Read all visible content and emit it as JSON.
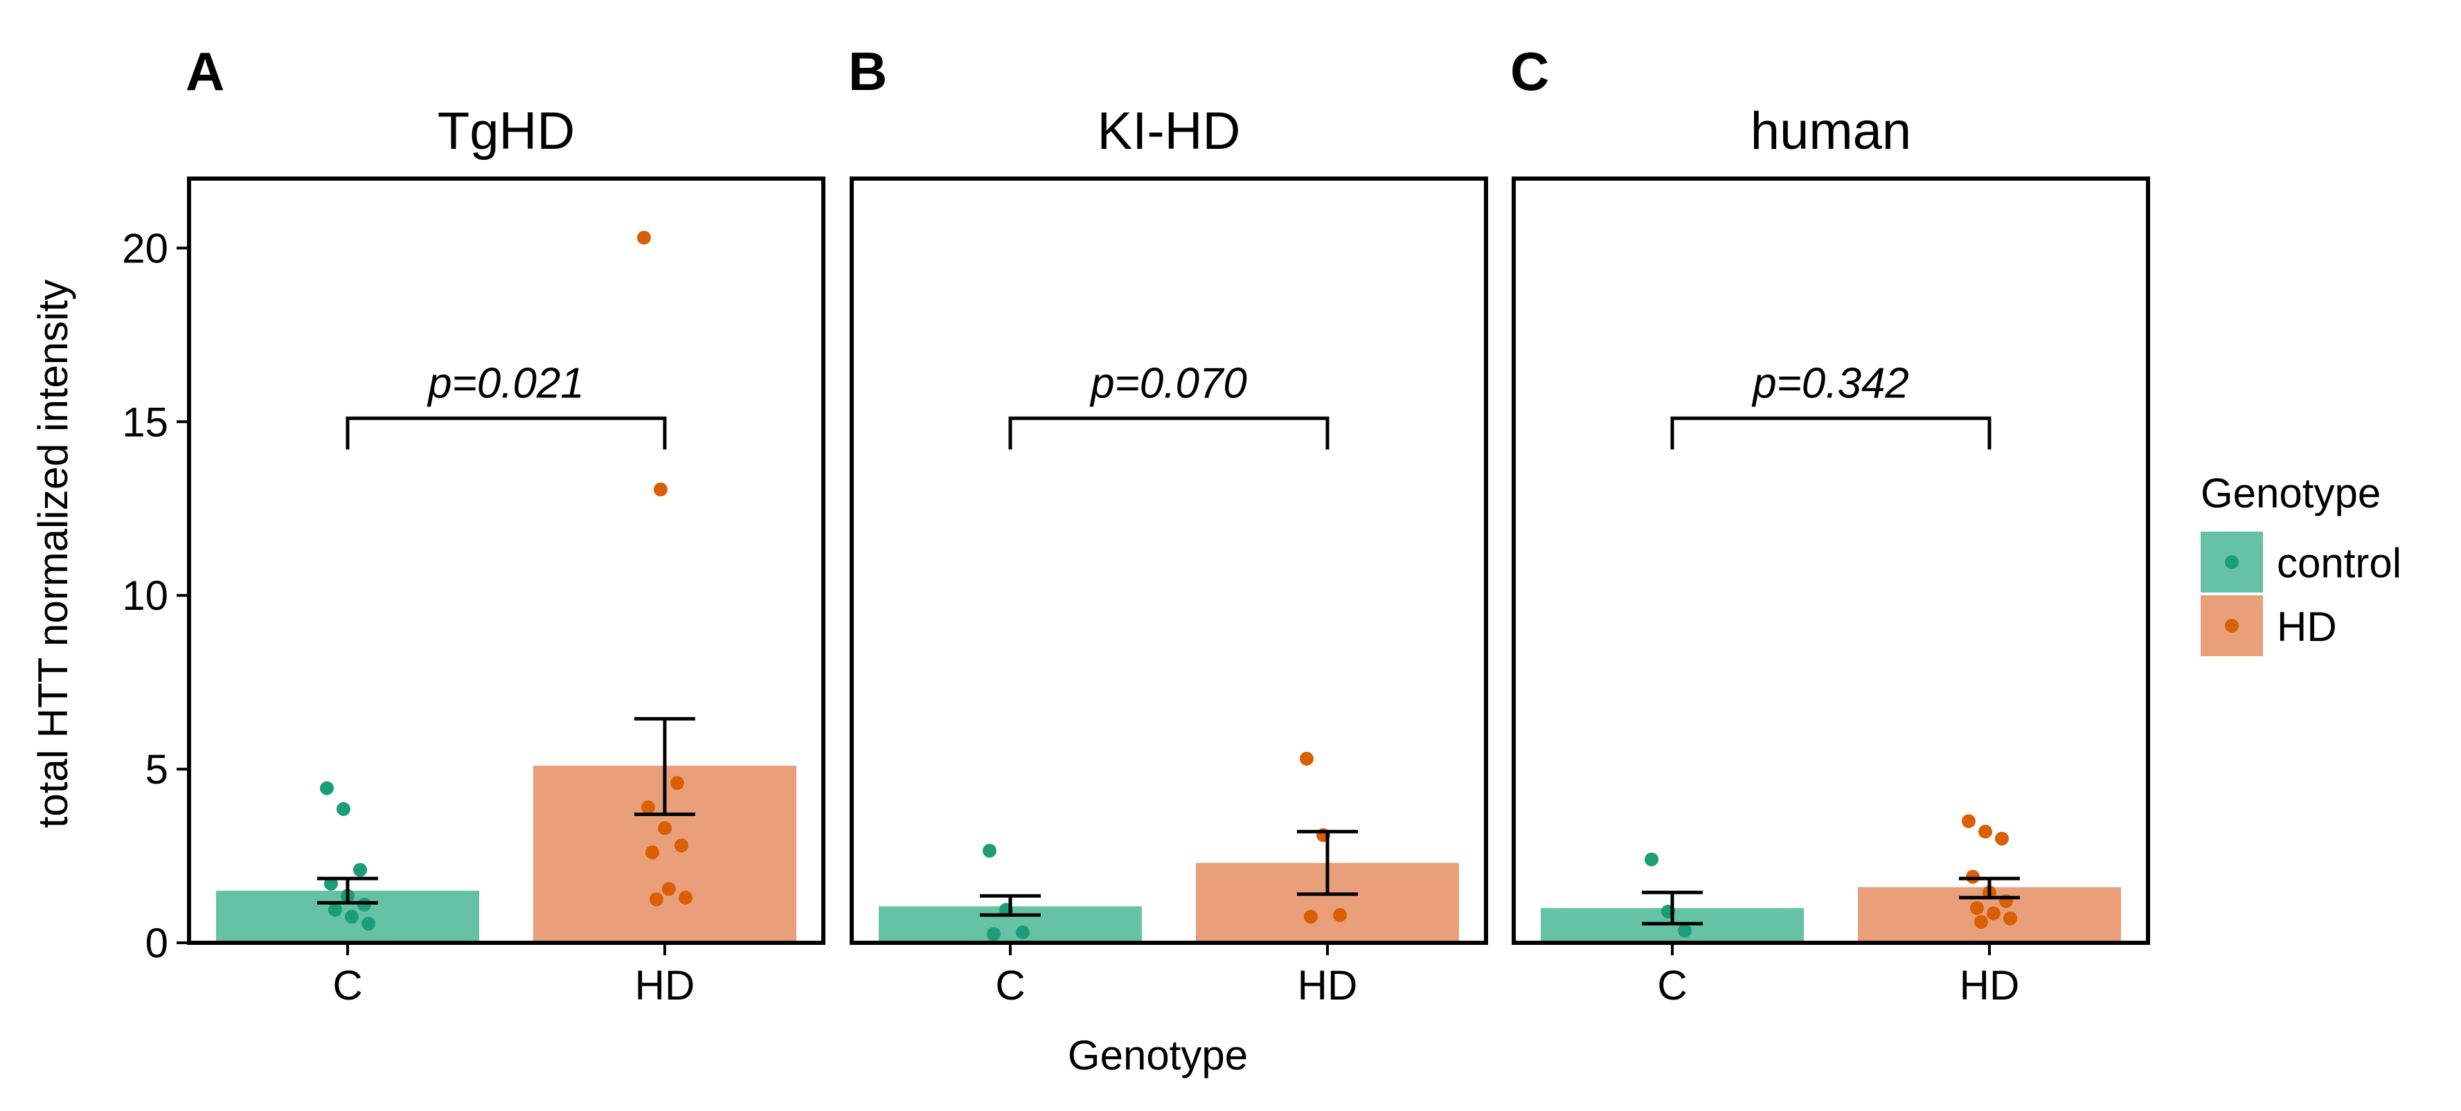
{
  "chart_data": {
    "type": "bar",
    "ylabel": "total HTT normalized intensity",
    "xlabel": "Genotype",
    "ylim": [
      0,
      22
    ],
    "yticks": [
      0,
      5,
      10,
      15,
      20
    ],
    "categories": [
      "C",
      "HD"
    ],
    "legend": {
      "title": "Genotype",
      "position": "right",
      "entries": [
        {
          "label": "control",
          "color": "#66c2a5",
          "point_color": "#1b9e77"
        },
        {
          "label": "HD",
          "color": "#e9a07a",
          "point_color": "#d95f02"
        }
      ]
    },
    "panels": [
      {
        "letter": "A",
        "title": "TgHD",
        "pvalue": "p=0.021",
        "bars": [
          {
            "category": "C",
            "mean": 1.5,
            "err_low": 1.15,
            "err_high": 1.85,
            "points": [
              4.45,
              3.85,
              2.1,
              1.7,
              1.35,
              1.1,
              0.95,
              0.75,
              0.55
            ]
          },
          {
            "category": "HD",
            "mean": 5.1,
            "err_low": 3.7,
            "err_high": 6.45,
            "points": [
              20.3,
              13.05,
              4.6,
              3.9,
              3.3,
              2.8,
              2.6,
              1.55,
              1.3,
              1.25
            ]
          }
        ]
      },
      {
        "letter": "B",
        "title": "KI-HD",
        "pvalue": "p=0.070",
        "bars": [
          {
            "category": "C",
            "mean": 1.05,
            "err_low": 0.8,
            "err_high": 1.35,
            "points": [
              2.65,
              0.95,
              0.3,
              0.25
            ]
          },
          {
            "category": "HD",
            "mean": 2.3,
            "err_low": 1.4,
            "err_high": 3.2,
            "points": [
              5.3,
              3.1,
              0.8,
              0.75
            ]
          }
        ]
      },
      {
        "letter": "C",
        "title": "human",
        "pvalue": "p=0.342",
        "bars": [
          {
            "category": "C",
            "mean": 1.0,
            "err_low": 0.55,
            "err_high": 1.45,
            "points": [
              2.4,
              0.9,
              0.35
            ]
          },
          {
            "category": "HD",
            "mean": 1.6,
            "err_low": 1.3,
            "err_high": 1.85,
            "points": [
              3.5,
              3.2,
              3.0,
              1.9,
              1.45,
              1.2,
              1.0,
              0.85,
              0.7,
              0.6
            ]
          }
        ]
      }
    ]
  }
}
